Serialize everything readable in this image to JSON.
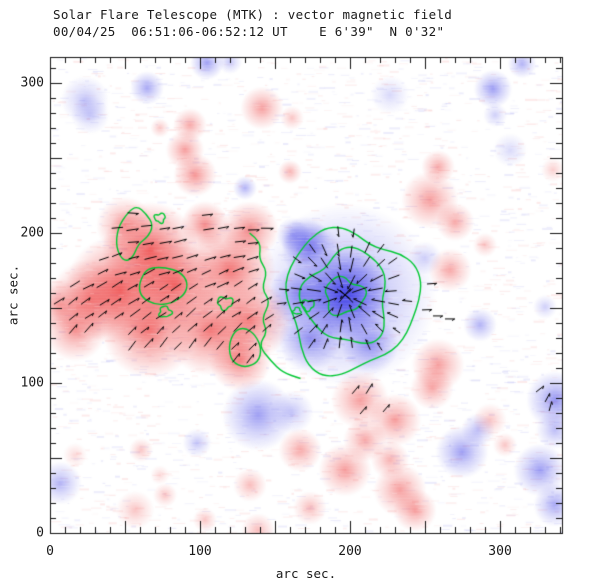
{
  "chart_data": {
    "type": "heatmap",
    "title": "Solar Flare Telescope (MTK) : vector magnetic field",
    "subtitle": "00/04/25  06:51:06-06:52:12 UT    E 6'39\"  N 0'32\"",
    "xlabel": "arc sec.",
    "ylabel": "arc sec.",
    "xlim": [
      0,
      341.3
    ],
    "ylim": [
      0,
      317.3
    ],
    "x_tick_values": [
      0,
      100,
      200,
      300
    ],
    "x_tick_labels": [
      "0",
      "100",
      "200",
      "300"
    ],
    "y_tick_values": [
      0,
      100,
      200,
      300
    ],
    "y_tick_labels": [
      "0",
      "100",
      "200",
      "300"
    ],
    "minor_tick_step": 10,
    "major_tick_step": 50,
    "colors": {
      "positive": "#ee3e3e",
      "negative": "#4040e8",
      "positive_rgb": "238,62,62",
      "negative_rgb": "64,64,232",
      "contour": "#00c832",
      "frame": "#111111",
      "vector": "#000000",
      "background": "#ffffff"
    },
    "blob_format": "[x_arcsec, y_arcsec, radius_arcsec, amplitude]",
    "blobs": {
      "positive": [
        [
          66.7,
          188.7,
          20,
          0.8
        ],
        [
          46.7,
          162,
          23,
          0.8
        ],
        [
          83.3,
          165.3,
          20,
          0.8
        ],
        [
          120,
          175.3,
          19,
          0.7
        ],
        [
          66.7,
          135.3,
          20,
          0.7
        ],
        [
          106.7,
          135.3,
          19,
          0.7
        ],
        [
          133.3,
          142,
          17,
          0.65
        ],
        [
          26.7,
          155.3,
          17,
          0.6
        ],
        [
          16.7,
          135.3,
          13,
          0.55
        ],
        [
          133.3,
          202,
          12,
          0.6
        ],
        [
          103.3,
          205.3,
          10,
          0.6
        ],
        [
          126.7,
          115.3,
          13,
          0.65
        ],
        [
          50,
          205,
          12,
          0.5
        ],
        [
          6,
          152,
          11,
          0.45
        ],
        [
          90,
          255.3,
          8,
          0.5
        ],
        [
          96.7,
          238.7,
          9,
          0.55
        ],
        [
          93.3,
          272,
          7,
          0.45
        ],
        [
          253.3,
          222,
          12,
          0.5
        ],
        [
          270,
          207.3,
          8,
          0.45
        ],
        [
          266.7,
          175.3,
          9,
          0.45
        ],
        [
          290,
          192,
          5,
          0.3
        ],
        [
          141.3,
          283.3,
          9,
          0.5
        ],
        [
          161.3,
          276.7,
          5,
          0.3
        ],
        [
          160,
          240.7,
          5,
          0.4
        ],
        [
          73.3,
          270,
          4,
          0.3
        ],
        [
          258.7,
          244,
          7,
          0.45
        ],
        [
          335.3,
          242,
          5,
          0.25
        ],
        [
          206.7,
          88.7,
          12,
          0.5
        ],
        [
          230,
          75.3,
          11,
          0.5
        ],
        [
          210,
          62,
          9,
          0.45
        ],
        [
          166.7,
          55.3,
          9,
          0.45
        ],
        [
          196.7,
          42,
          11,
          0.5
        ],
        [
          226.7,
          48.7,
          8,
          0.4
        ],
        [
          233.3,
          28.7,
          11,
          0.5
        ],
        [
          243.3,
          15.3,
          9,
          0.5
        ],
        [
          258.7,
          112,
          11,
          0.5
        ],
        [
          254.7,
          96.7,
          9,
          0.45
        ],
        [
          293.3,
          75.3,
          7,
          0.3
        ],
        [
          303.3,
          58.7,
          5,
          0.3
        ],
        [
          56.7,
          15.3,
          8,
          0.3
        ],
        [
          76.7,
          25.3,
          5,
          0.3
        ],
        [
          16.7,
          52,
          5,
          0.2
        ],
        [
          173.3,
          16.7,
          7,
          0.35
        ],
        [
          138.7,
          2,
          7,
          0.35
        ],
        [
          133.3,
          32,
          7,
          0.35
        ],
        [
          60.7,
          55.3,
          5,
          0.3
        ],
        [
          103.3,
          8.7,
          5,
          0.3
        ],
        [
          73.3,
          38.7,
          4,
          0.2
        ]
      ],
      "negative": [
        [
          196.7,
          158.7,
          19,
          0.95
        ],
        [
          196.7,
          158.7,
          38,
          0.5
        ],
        [
          173.3,
          188.7,
          12,
          0.5
        ],
        [
          173.3,
          128.7,
          13,
          0.5
        ],
        [
          213.3,
          125.3,
          12,
          0.5
        ],
        [
          166.7,
          158.7,
          13,
          0.55
        ],
        [
          170,
          195,
          10,
          0.45
        ],
        [
          162,
          199,
          7,
          0.4
        ],
        [
          138.7,
          78.7,
          15,
          0.5
        ],
        [
          161.3,
          80.7,
          9,
          0.3
        ],
        [
          250,
          183.3,
          7,
          0.25
        ],
        [
          286.7,
          138.7,
          7,
          0.4
        ],
        [
          330,
          150.7,
          5,
          0.25
        ],
        [
          274.7,
          54,
          11,
          0.5
        ],
        [
          285.3,
          68.7,
          7,
          0.35
        ],
        [
          336.7,
          88.7,
          12,
          0.55
        ],
        [
          336.7,
          68.7,
          8,
          0.35
        ],
        [
          326.7,
          42,
          11,
          0.5
        ],
        [
          336.7,
          18.7,
          9,
          0.45
        ],
        [
          6.7,
          33.3,
          9,
          0.4
        ],
        [
          23.3,
          288.7,
          10,
          0.3
        ],
        [
          26.7,
          278.7,
          8,
          0.25
        ],
        [
          64.7,
          296.7,
          7,
          0.45
        ],
        [
          104.7,
          313.3,
          7,
          0.5
        ],
        [
          120,
          314,
          5,
          0.3
        ],
        [
          226.7,
          292,
          8,
          0.2
        ],
        [
          295.3,
          296,
          8,
          0.5
        ],
        [
          296.7,
          278.7,
          5,
          0.25
        ],
        [
          314.7,
          312.7,
          6,
          0.4
        ],
        [
          306.7,
          255.3,
          7,
          0.2
        ],
        [
          130,
          230,
          5,
          0.4
        ],
        [
          98,
          60,
          6,
          0.3
        ]
      ]
    },
    "contours": {
      "levels_note": "green contours outline strong-field cores",
      "ellipses": [
        {
          "cx": 200,
          "cy": 155,
          "rx": 44,
          "ry": 47,
          "w": 0.1,
          "seed": 2
        },
        {
          "cx": 198,
          "cy": 157,
          "rx": 28,
          "ry": 31,
          "w": 0.12,
          "seed": 5
        },
        {
          "cx": 196,
          "cy": 158,
          "rx": 13,
          "ry": 12,
          "w": 0.15,
          "seed": 8
        },
        {
          "cx": 172,
          "cy": 152,
          "rx": 4,
          "ry": 3.5,
          "w": 0.2,
          "seed": 3
        },
        {
          "cx": 164.7,
          "cy": 148,
          "rx": 2.5,
          "ry": 2.2,
          "w": 0.2,
          "seed": 6
        },
        {
          "cx": 73.3,
          "cy": 210,
          "rx": 3.5,
          "ry": 3,
          "w": 0.2,
          "seed": 4
        },
        {
          "cx": 76.7,
          "cy": 147.3,
          "rx": 4,
          "ry": 3.5,
          "w": 0.2,
          "seed": 7
        },
        {
          "cx": 116.7,
          "cy": 153.3,
          "rx": 5,
          "ry": 4,
          "w": 0.2,
          "seed": 9
        }
      ],
      "loops": [
        [
          [
            52,
            214
          ],
          [
            45,
            203
          ],
          [
            44,
            190
          ],
          [
            49,
            181
          ],
          [
            55,
            183
          ],
          [
            59,
            193
          ],
          [
            65,
            197
          ],
          [
            69,
            205
          ],
          [
            64,
            213
          ],
          [
            58,
            218
          ]
        ],
        [
          [
            63,
            174
          ],
          [
            59,
            165
          ],
          [
            61,
            157
          ],
          [
            70,
            152
          ],
          [
            81,
            153
          ],
          [
            90,
            159
          ],
          [
            92,
            167
          ],
          [
            87,
            174
          ],
          [
            77,
            177
          ],
          [
            68,
            177
          ]
        ],
        [
          [
            123,
            135
          ],
          [
            119,
            125
          ],
          [
            121,
            114
          ],
          [
            130,
            110
          ],
          [
            139,
            114
          ],
          [
            141,
            123
          ],
          [
            137,
            132
          ],
          [
            130,
            137
          ]
        ]
      ],
      "open": [
        [
          [
            133,
            200
          ],
          [
            141,
            194
          ],
          [
            139,
            183
          ],
          [
            145,
            174
          ],
          [
            141,
            163
          ],
          [
            147,
            154
          ],
          [
            141,
            143
          ],
          [
            145,
            134
          ],
          [
            139,
            125
          ],
          [
            147,
            115
          ],
          [
            155,
            107
          ],
          [
            167,
            103
          ]
        ]
      ]
    },
    "vector_field": {
      "step": 10,
      "region_x": [
        2,
        245
      ],
      "region_y": [
        93,
        228
      ],
      "threshold": 0.3,
      "radial_threshold": 0.12,
      "blue_center": [
        196.7,
        158.7
      ],
      "radial_radius": 46,
      "angle_ref_y": 212,
      "angle_slope": 0.55,
      "angle_min": -6,
      "angle_max": 54,
      "base_length": 6.5,
      "extras": [
        [
          206.7,
          79.3,
          50
        ],
        [
          222,
          80.7,
          50
        ],
        [
          324,
          94,
          38
        ],
        [
          330,
          87.3,
          62
        ],
        [
          332.7,
          81.3,
          75
        ],
        [
          251.3,
          166,
          4
        ],
        [
          248,
          148.7,
          2
        ],
        [
          255.3,
          144.7,
          0
        ],
        [
          263.3,
          142.7,
          0
        ]
      ]
    },
    "noise": {
      "seed": 42,
      "specks": 2600,
      "white_streaks": 1500
    }
  }
}
